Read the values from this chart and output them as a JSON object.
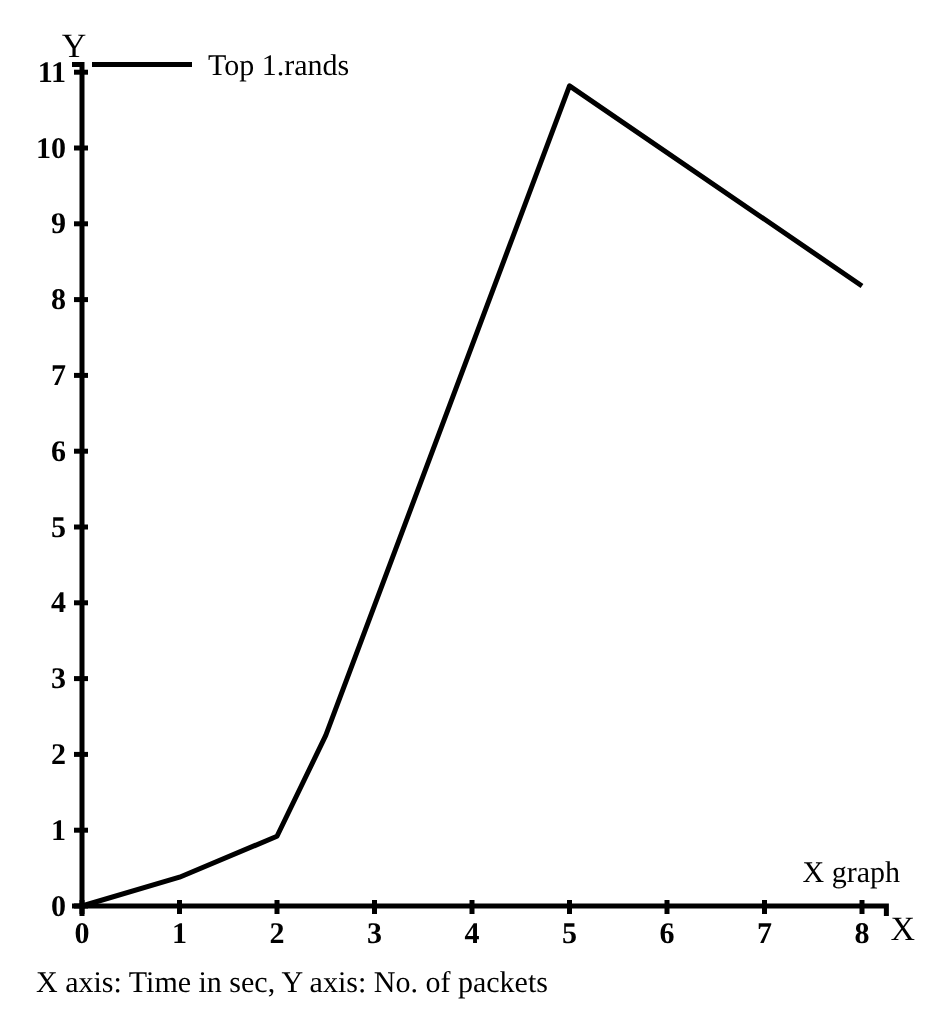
{
  "chart_data": {
    "type": "line",
    "xlabel": "X",
    "ylabel": "Y",
    "x": [
      0,
      1,
      2,
      2.5,
      5,
      8
    ],
    "series": [
      {
        "name": "Top 1.rands",
        "color": "#000000",
        "values": [
          0,
          0.38,
          0.92,
          2.25,
          10.82,
          8.18
        ]
      }
    ],
    "xlim": [
      0,
      8.25
    ],
    "xticks": [
      0,
      1,
      2,
      3,
      4,
      5,
      6,
      7,
      8
    ],
    "ylim": [
      0,
      11.1
    ],
    "yticks": [
      0,
      1,
      2,
      3,
      4,
      5,
      6,
      7,
      8,
      9,
      10,
      11
    ],
    "legend": "top left",
    "grid": false,
    "marker": "none",
    "line_style": "solid",
    "annotations": [
      "X graph",
      "X axis: Time in sec, Y axis: No. of packets"
    ]
  }
}
